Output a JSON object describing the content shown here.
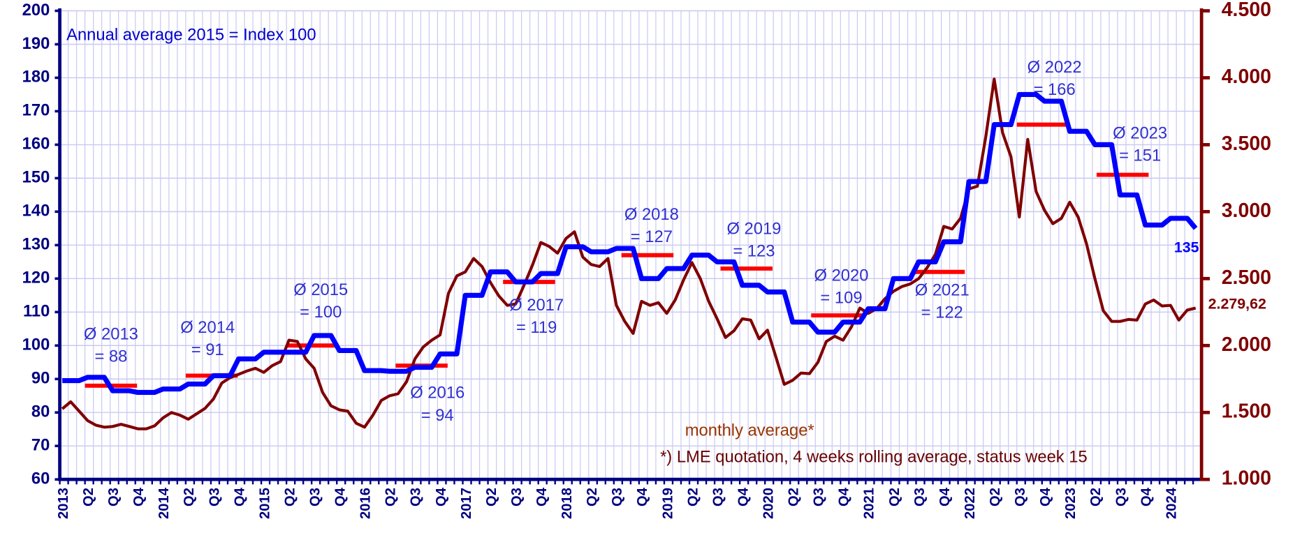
{
  "chart_data": {
    "type": "line",
    "subtitle": "Annual average 2015 = Index 100",
    "note": "*) LME quotation, 4 weeks rolling average, status week 15",
    "categories": [
      "2013",
      null,
      null,
      "Q2",
      null,
      null,
      "Q3",
      null,
      null,
      "Q4",
      null,
      null,
      "2014",
      null,
      null,
      "Q2",
      null,
      null,
      "Q3",
      null,
      null,
      "Q4",
      null,
      null,
      "2015",
      null,
      null,
      "Q2",
      null,
      null,
      "Q3",
      null,
      null,
      "Q4",
      null,
      null,
      "2016",
      null,
      null,
      "Q2",
      null,
      null,
      "Q3",
      null,
      null,
      "Q4",
      null,
      null,
      "2017",
      null,
      null,
      "Q2",
      null,
      null,
      "Q3",
      null,
      null,
      "Q4",
      null,
      null,
      "2018",
      null,
      null,
      "Q2",
      null,
      null,
      "Q3",
      null,
      null,
      "Q4",
      null,
      null,
      "2019",
      null,
      null,
      "Q2",
      null,
      null,
      "Q3",
      null,
      null,
      "Q4",
      null,
      null,
      "2020",
      null,
      null,
      "Q2",
      null,
      null,
      "Q3",
      null,
      null,
      "Q4",
      null,
      null,
      "2021",
      null,
      null,
      "Q2",
      null,
      null,
      "Q3",
      null,
      null,
      "Q4",
      null,
      null,
      "2022",
      null,
      null,
      "Q2",
      null,
      null,
      "Q3",
      null,
      null,
      "Q4",
      null,
      null,
      "2023",
      null,
      null,
      "Q2",
      null,
      null,
      "Q3",
      null,
      null,
      "Q4",
      null,
      null,
      "2024",
      null,
      null,
      null
    ],
    "series": [
      {
        "color": "#0000ff",
        "axis": "y",
        "label_last": true,
        "values": [
          89.5,
          89.5,
          89.5,
          90.5,
          90.5,
          90.5,
          86.5,
          86.5,
          86.5,
          86,
          86,
          86,
          87,
          87,
          87,
          88.5,
          88.5,
          88.5,
          91,
          91,
          91,
          96,
          96,
          96,
          98,
          98,
          98,
          98,
          98,
          98,
          103,
          103,
          103,
          98.5,
          98.5,
          98.5,
          92.5,
          92.5,
          92.5,
          92.3,
          92.3,
          92.3,
          93.5,
          93.5,
          93.5,
          97.5,
          97.5,
          97.5,
          115,
          115,
          115,
          122,
          122,
          122,
          119,
          119,
          119,
          121.5,
          121.5,
          121.5,
          129.5,
          129.5,
          129.5,
          128,
          128,
          128,
          129,
          129,
          129,
          120,
          120,
          120,
          123,
          123,
          123,
          127,
          127,
          127,
          125,
          125,
          125,
          118,
          118,
          118,
          116,
          116,
          116,
          107,
          107,
          107,
          104,
          104,
          104,
          107,
          107,
          107,
          111,
          111,
          111,
          120,
          120,
          120,
          125,
          125,
          125,
          131,
          131,
          131,
          149,
          149,
          149,
          166,
          166,
          166,
          175,
          175,
          175,
          173,
          173,
          173,
          164,
          164,
          164,
          160,
          160,
          160,
          145,
          145,
          145,
          136,
          136,
          136,
          138,
          138,
          138,
          135
        ]
      },
      {
        "name": "monthly average*",
        "color": "#800000",
        "axis": "y2",
        "values": [
          1527,
          1580,
          1510,
          1440,
          1405,
          1390,
          1395,
          1412,
          1395,
          1378,
          1378,
          1400,
          1460,
          1500,
          1480,
          1450,
          1490,
          1530,
          1600,
          1720,
          1760,
          1785,
          1810,
          1830,
          1800,
          1850,
          1880,
          2040,
          2030,
          1900,
          1830,
          1650,
          1550,
          1520,
          1510,
          1420,
          1390,
          1480,
          1590,
          1625,
          1640,
          1730,
          1900,
          1990,
          2040,
          2080,
          2390,
          2520,
          2550,
          2650,
          2590,
          2470,
          2370,
          2300,
          2310,
          2450,
          2600,
          2770,
          2740,
          2690,
          2800,
          2850,
          2660,
          2605,
          2590,
          2650,
          2300,
          2180,
          2090,
          2330,
          2300,
          2320,
          2240,
          2340,
          2490,
          2620,
          2500,
          2330,
          2200,
          2060,
          2110,
          2200,
          2190,
          2050,
          2115,
          1915,
          1710,
          1740,
          1795,
          1790,
          1875,
          2030,
          2070,
          2040,
          2140,
          2280,
          2240,
          2275,
          2350,
          2405,
          2440,
          2460,
          2500,
          2580,
          2680,
          2890,
          2870,
          2950,
          3170,
          3190,
          3560,
          3990,
          3590,
          3410,
          2960,
          3540,
          3150,
          3010,
          2910,
          2950,
          3070,
          2960,
          2760,
          2500,
          2260,
          2180,
          2180,
          2195,
          2190,
          2310,
          2340,
          2295,
          2300,
          2190,
          2265,
          2279.62
        ],
        "value_labels": [
          null,
          null,
          null,
          null,
          null,
          null,
          null,
          null,
          null,
          null,
          null,
          null,
          null,
          null,
          null,
          null,
          null,
          null,
          null,
          null,
          null,
          null,
          null,
          null,
          null,
          null,
          null,
          null,
          null,
          null,
          null,
          null,
          null,
          null,
          null,
          null,
          null,
          null,
          null,
          null,
          null,
          null,
          null,
          null,
          null,
          null,
          null,
          null,
          null,
          null,
          null,
          null,
          null,
          null,
          null,
          null,
          null,
          null,
          null,
          null,
          null,
          null,
          null,
          null,
          null,
          null,
          null,
          null,
          null,
          null,
          null,
          null,
          null,
          null,
          null,
          null,
          null,
          null,
          null,
          null,
          null,
          null,
          null,
          null,
          null,
          null,
          null,
          null,
          null,
          null,
          null,
          null,
          null,
          null,
          null,
          null,
          null,
          null,
          null,
          null,
          null,
          null,
          null,
          null,
          null,
          null,
          null,
          null,
          null,
          null,
          null,
          null,
          null,
          null,
          null,
          null,
          null,
          null,
          null,
          null,
          null,
          null,
          null,
          null,
          null,
          null,
          null,
          null,
          null,
          null,
          null,
          null,
          null,
          null,
          null,
          "2.279,62"
        ]
      }
    ],
    "annual_averages": [
      {
        "label": "Ø 2013",
        "value": 88,
        "value_label": "= 88"
      },
      {
        "label": "Ø 2014",
        "value": 91,
        "value_label": "= 91"
      },
      {
        "label": "Ø 2015",
        "value": 100,
        "value_label": "= 100"
      },
      {
        "label": "Ø 2016",
        "value": 94,
        "value_label": "= 94"
      },
      {
        "label": "Ø 2017",
        "value": 119,
        "value_label": "= 119"
      },
      {
        "label": "Ø 2018",
        "value": 127,
        "value_label": "= 127"
      },
      {
        "label": "Ø 2019",
        "value": 123,
        "value_label": "= 123"
      },
      {
        "label": "Ø 2020",
        "value": 109,
        "value_label": "= 109"
      },
      {
        "label": "Ø 2021",
        "value": 122,
        "value_label": "= 122"
      },
      {
        "label": "Ø 2022",
        "value": 166,
        "value_label": "= 166"
      },
      {
        "label": "Ø 2023",
        "value": 151,
        "value_label": "= 151"
      }
    ],
    "annual_average_color": "#ff0000",
    "ylim": [
      60,
      200
    ],
    "yticks": [
      60,
      70,
      80,
      90,
      100,
      110,
      120,
      130,
      140,
      150,
      160,
      170,
      180,
      190,
      200
    ],
    "y2lim": [
      1000,
      4500
    ],
    "y2ticks": [
      {
        "value": 1000,
        "label": "1.000"
      },
      {
        "value": 1500,
        "label": "1.500"
      },
      {
        "value": 2000,
        "label": "2.000"
      },
      {
        "value": 2500,
        "label": "2.500"
      },
      {
        "value": 3000,
        "label": "3.000"
      },
      {
        "value": 3500,
        "label": "3.500"
      },
      {
        "value": 4000,
        "label": "4.000"
      },
      {
        "value": 4500,
        "label": "4.500"
      }
    ],
    "grid": true
  }
}
